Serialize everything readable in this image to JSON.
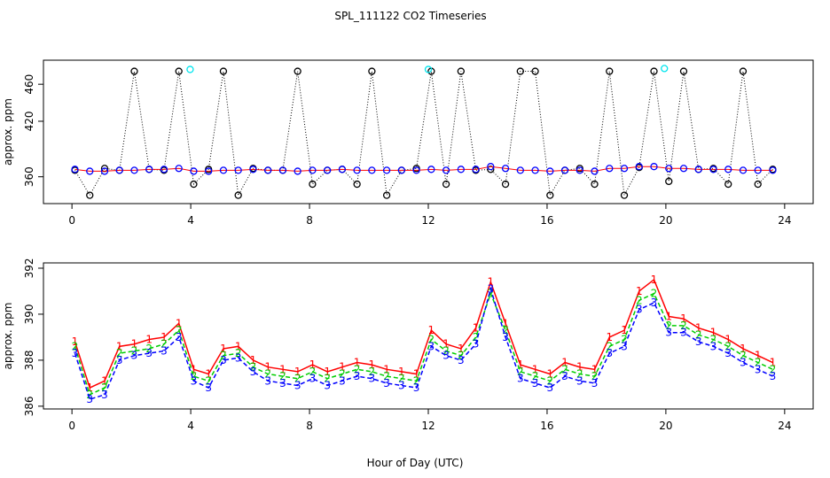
{
  "chart_data": [
    {
      "type": "scatter",
      "title": "SPL_111122  CO2 Timeseries",
      "ylabel": "approx. ppm",
      "x": [
        0.1,
        0.6,
        1.1,
        1.6,
        2.1,
        2.6,
        3.1,
        3.6,
        4.1,
        4.6,
        5.1,
        5.6,
        6.1,
        6.6,
        7.1,
        7.6,
        8.1,
        8.6,
        9.1,
        9.6,
        10.1,
        10.6,
        11.1,
        11.6,
        12.1,
        12.6,
        13.1,
        13.6,
        14.1,
        14.6,
        15.1,
        15.6,
        16.1,
        16.6,
        17.1,
        17.6,
        18.1,
        18.6,
        19.1,
        19.6,
        20.1,
        20.6,
        21.1,
        21.6,
        22.1,
        22.6,
        23.1,
        23.6
      ],
      "xlim": [
        -0.96,
        24.96
      ],
      "xticks": [
        0,
        4,
        8,
        12,
        16,
        20,
        24
      ],
      "ylim": [
        331,
        486
      ],
      "yticks": [
        360,
        420,
        460
      ],
      "series": [
        {
          "color": "#000000",
          "line": "dotted",
          "values": [
            367,
            340,
            369,
            367,
            474,
            368,
            367,
            474,
            352,
            368,
            474,
            340,
            369,
            367,
            367,
            474,
            352,
            367,
            368,
            352,
            474,
            340,
            367,
            369,
            474,
            352,
            474,
            367,
            368,
            352,
            474,
            474,
            340,
            367,
            369,
            352,
            474,
            340,
            370,
            474,
            355,
            474,
            368,
            369,
            352,
            474,
            352,
            368
          ]
        },
        {
          "color": "#0000ff",
          "line_color": "#ff0000",
          "line": "solid",
          "values": [
            368,
            366,
            366,
            367,
            367,
            368,
            368,
            369,
            366,
            366,
            367,
            367,
            368,
            367,
            367,
            366,
            367,
            367,
            368,
            367,
            367,
            367,
            367,
            367,
            368,
            367,
            368,
            368,
            371,
            369,
            367,
            367,
            366,
            367,
            367,
            366,
            369,
            369,
            371,
            371,
            369,
            369,
            368,
            368,
            368,
            367,
            367,
            367
          ]
        },
        {
          "color": "#00e5ee",
          "x": [
            3.98,
            12.0,
            19.95
          ],
          "values": [
            476,
            476,
            477
          ]
        }
      ]
    },
    {
      "type": "line",
      "xlabel": "Hour of Day (UTC)",
      "ylabel": "approx. ppm",
      "x": [
        0.1,
        0.6,
        1.1,
        1.6,
        2.1,
        2.6,
        3.1,
        3.6,
        4.1,
        4.6,
        5.1,
        5.6,
        6.1,
        6.6,
        7.1,
        7.6,
        8.1,
        8.6,
        9.1,
        9.6,
        10.1,
        10.6,
        11.1,
        11.6,
        12.1,
        12.6,
        13.1,
        13.6,
        14.1,
        14.6,
        15.1,
        15.6,
        16.1,
        16.6,
        17.1,
        17.6,
        18.1,
        18.6,
        19.1,
        19.6,
        20.1,
        20.6,
        21.1,
        21.6,
        22.1,
        22.6,
        23.1,
        23.6
      ],
      "xlim": [
        -0.96,
        24.96
      ],
      "xticks": [
        0,
        4,
        8,
        12,
        16,
        20,
        24
      ],
      "ylim": [
        385.88,
        392.23
      ],
      "yticks": [
        386,
        388,
        390,
        392
      ],
      "series": [
        {
          "color": "#ff0000",
          "marker": "1",
          "dash": false,
          "values": [
            388.8,
            386.8,
            387.1,
            388.6,
            388.7,
            388.9,
            389.0,
            389.6,
            387.6,
            387.4,
            388.5,
            388.6,
            388.0,
            387.7,
            387.6,
            387.5,
            387.8,
            387.5,
            387.7,
            387.9,
            387.8,
            387.6,
            387.5,
            387.4,
            389.3,
            388.7,
            388.5,
            389.4,
            391.4,
            389.6,
            387.8,
            387.6,
            387.4,
            387.9,
            387.7,
            387.6,
            389.0,
            389.3,
            391.0,
            391.5,
            389.9,
            389.8,
            389.4,
            389.2,
            388.9,
            388.5,
            388.2,
            387.9
          ]
        },
        {
          "color": "#00cd00",
          "marker": "2",
          "dash": true,
          "values": [
            388.6,
            386.5,
            386.8,
            388.3,
            388.4,
            388.5,
            388.7,
            389.3,
            387.3,
            387.1,
            388.2,
            388.3,
            387.7,
            387.4,
            387.3,
            387.2,
            387.5,
            387.2,
            387.4,
            387.6,
            387.5,
            387.3,
            387.2,
            387.1,
            388.9,
            388.4,
            388.2,
            389.0,
            390.9,
            389.3,
            387.5,
            387.3,
            387.1,
            387.6,
            387.4,
            387.3,
            388.6,
            388.9,
            390.6,
            390.9,
            389.5,
            389.5,
            389.1,
            388.9,
            388.6,
            388.2,
            387.9,
            387.6
          ]
        },
        {
          "color": "#0000ff",
          "marker": "3",
          "dash": true,
          "values": [
            388.3,
            386.3,
            386.5,
            388.0,
            388.2,
            388.3,
            388.4,
            389.0,
            387.1,
            386.8,
            388.0,
            388.1,
            387.5,
            387.1,
            387.0,
            386.9,
            387.2,
            386.9,
            387.1,
            387.3,
            387.2,
            387.0,
            386.9,
            386.8,
            388.6,
            388.2,
            388.0,
            388.7,
            391.1,
            389.0,
            387.2,
            387.0,
            386.8,
            387.3,
            387.1,
            387.0,
            388.3,
            388.6,
            390.2,
            390.5,
            389.2,
            389.2,
            388.8,
            388.6,
            388.3,
            387.9,
            387.6,
            387.3
          ]
        }
      ]
    }
  ]
}
